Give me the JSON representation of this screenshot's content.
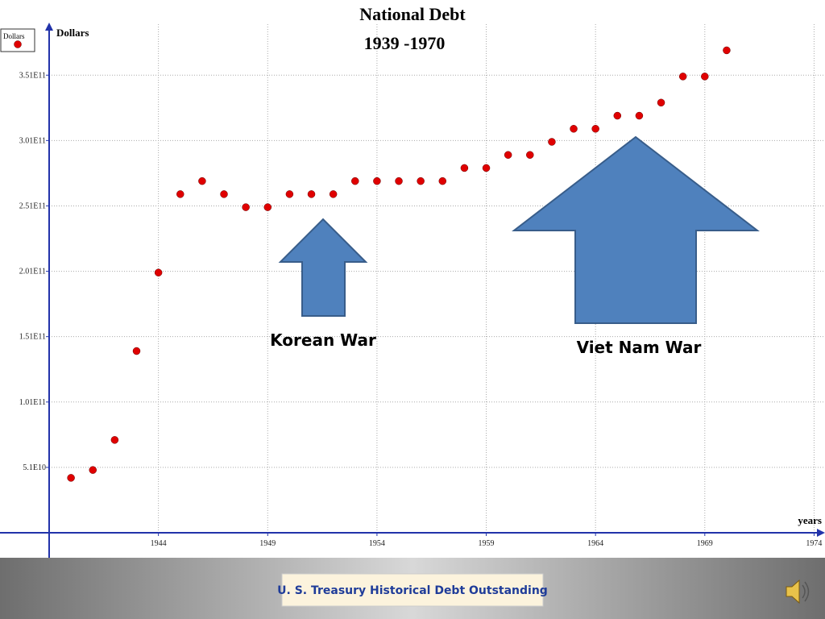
{
  "chart_data": {
    "type": "scatter",
    "title": "National Debt",
    "subtitle": "1939 -1970",
    "y_label": "Dollars",
    "x_label": "years",
    "annotations": [
      "Korean War",
      "Viet Nam War"
    ],
    "source": "U. S. Treasury Historical Debt Outstanding",
    "grid": true,
    "legend": "top-left",
    "xlim": [
      1939,
      1974.5
    ],
    "xticks": [
      1944,
      1949,
      1954,
      1959,
      1964,
      1969,
      1974
    ],
    "ylim": [
      1000000000,
      390000000000
    ],
    "yticks": [
      {
        "value": 51000000000,
        "label": "5.1E10"
      },
      {
        "value": 101000000000,
        "label": "1.01E11"
      },
      {
        "value": 151000000000,
        "label": "1.51E11"
      },
      {
        "value": 201000000000,
        "label": "2.01E11"
      },
      {
        "value": 251000000000,
        "label": "2.51E11"
      },
      {
        "value": 301000000000,
        "label": "3.01E11"
      },
      {
        "value": 351000000000,
        "label": "3.51E11"
      }
    ],
    "x": [
      1940,
      1941,
      1942,
      1943,
      1944,
      1945,
      1946,
      1947,
      1948,
      1949,
      1950,
      1951,
      1952,
      1953,
      1954,
      1955,
      1956,
      1957,
      1958,
      1959,
      1960,
      1961,
      1962,
      1963,
      1964,
      1965,
      1966,
      1967,
      1968,
      1969,
      1970
    ],
    "series": [
      {
        "name": "Dollars",
        "color": "#e00000",
        "values": [
          43000000000,
          49000000000,
          72000000000,
          140000000000,
          200000000000,
          260000000000,
          270000000000,
          260000000000,
          250000000000,
          250000000000,
          260000000000,
          260000000000,
          260000000000,
          270000000000,
          270000000000,
          270000000000,
          270000000000,
          270000000000,
          280000000000,
          280000000000,
          290000000000,
          290000000000,
          300000000000,
          310000000000,
          310000000000,
          320000000000,
          320000000000,
          330000000000,
          350000000000,
          350000000000,
          370000000000
        ]
      }
    ]
  }
}
